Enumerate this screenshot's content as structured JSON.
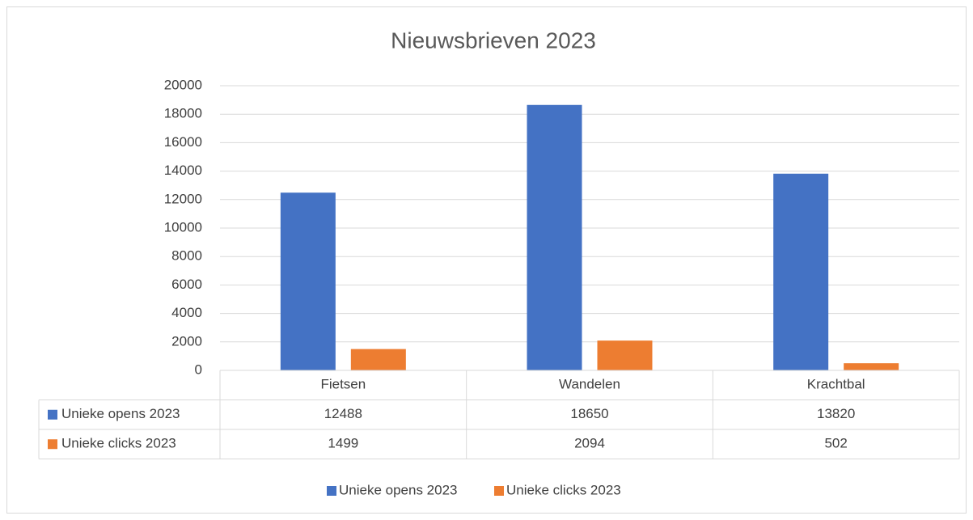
{
  "chart_data": {
    "type": "bar",
    "title": "Nieuwsbrieven 2023",
    "categories": [
      "Fietsen",
      "Wandelen",
      "Krachtbal"
    ],
    "series": [
      {
        "name": "Unieke opens 2023",
        "color": "#4472c4",
        "values": [
          12488,
          18650,
          13820
        ]
      },
      {
        "name": "Unieke clicks 2023",
        "color": "#ed7d31",
        "values": [
          1499,
          2094,
          502
        ]
      }
    ],
    "ylim": [
      0,
      20000
    ],
    "yticks": [
      0,
      2000,
      4000,
      6000,
      8000,
      10000,
      12000,
      14000,
      16000,
      18000,
      20000
    ],
    "grid": true,
    "legend": "bottom"
  }
}
